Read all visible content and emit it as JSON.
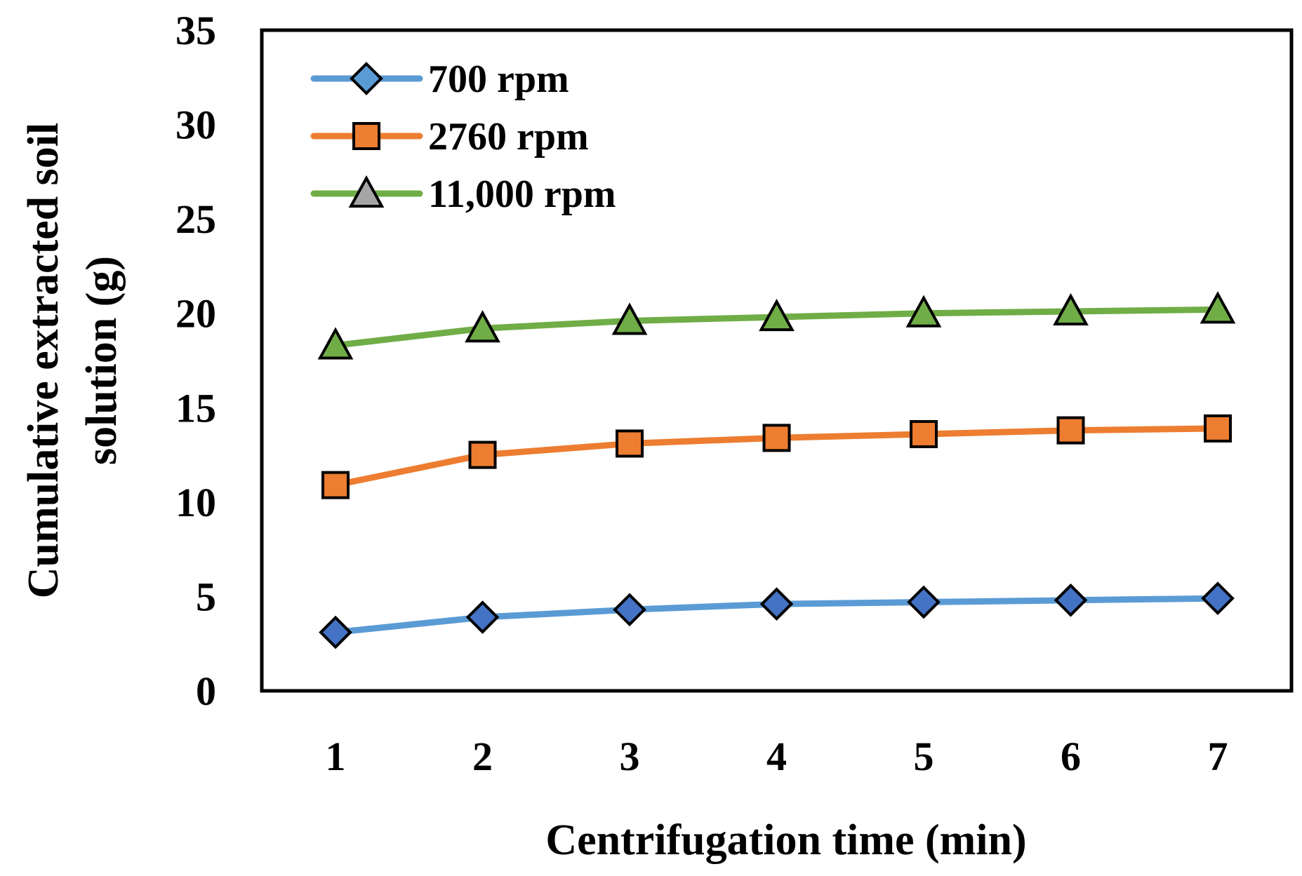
{
  "chart_data": {
    "type": "line",
    "title": "",
    "xlabel": "Centrifugation time (min)",
    "ylabel_lines": [
      "Cumulative extracted soil",
      "solution (g)"
    ],
    "x": [
      1,
      2,
      3,
      4,
      5,
      6,
      7
    ],
    "x_tick_labels": [
      "1",
      "2",
      "3",
      "4",
      "5",
      "6",
      "7"
    ],
    "ylim": [
      0,
      35
    ],
    "y_ticks": [
      0,
      5,
      10,
      15,
      20,
      25,
      30,
      35
    ],
    "y_tick_labels": [
      "0",
      "5",
      "10",
      "15",
      "20",
      "25",
      "30",
      "35"
    ],
    "grid": false,
    "legend_position": "top-left",
    "series": [
      {
        "name": "700 rpm",
        "values": [
          3.1,
          3.9,
          4.3,
          4.6,
          4.7,
          4.8,
          4.9
        ],
        "line_color": "#5B9BD5",
        "marker": "diamond",
        "marker_color": "#4472C4"
      },
      {
        "name": "2760 rpm",
        "values": [
          10.9,
          12.5,
          13.1,
          13.4,
          13.6,
          13.8,
          13.9
        ],
        "line_color": "#ED7D31",
        "marker": "square",
        "marker_color": "#ED7D31"
      },
      {
        "name": "11,000 rpm",
        "values": [
          18.3,
          19.2,
          19.6,
          19.8,
          20.0,
          20.1,
          20.2
        ],
        "line_color": "#70AD47",
        "marker": "triangle",
        "marker_color": "#70AD47"
      }
    ]
  }
}
